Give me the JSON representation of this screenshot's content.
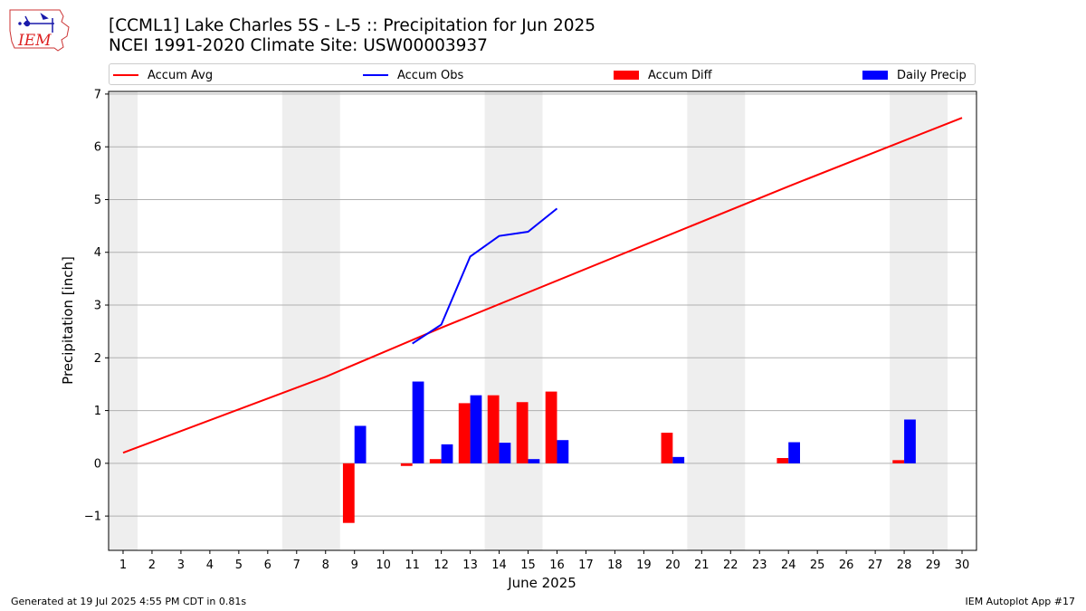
{
  "header": {
    "title_line1": "[CCML1] Lake Charles 5S - L-5 :: Precipitation for Jun 2025",
    "title_line2": "NCEI 1991-2020 Climate Site: USW00003937",
    "logo_text": "IEM"
  },
  "legend": {
    "items": [
      {
        "label": "Accum Avg",
        "kind": "line",
        "color": "#ff0000"
      },
      {
        "label": "Accum Obs",
        "kind": "line",
        "color": "#0000ff"
      },
      {
        "label": "Accum Diff",
        "kind": "bar",
        "color": "#ff0000"
      },
      {
        "label": "Daily Precip",
        "kind": "bar",
        "color": "#0000ff"
      }
    ]
  },
  "footer": {
    "left": "Generated at 19 Jul 2025 4:55 PM CDT in 0.81s",
    "right": "IEM Autoplot App #17"
  },
  "chart_data": {
    "type": "bar",
    "xlabel": "June 2025",
    "ylabel": "Precipitation [inch]",
    "xlim": [
      0.5,
      30.5
    ],
    "ylim": [
      -1.65,
      7.05
    ],
    "x_ticks": [
      1,
      2,
      3,
      4,
      5,
      6,
      7,
      8,
      9,
      10,
      11,
      12,
      13,
      14,
      15,
      16,
      17,
      18,
      19,
      20,
      21,
      22,
      23,
      24,
      25,
      26,
      27,
      28,
      29,
      30
    ],
    "y_ticks": [
      -1,
      0,
      1,
      2,
      3,
      4,
      5,
      6,
      7
    ],
    "y_tick_labels": [
      "−1",
      "0",
      "1",
      "2",
      "3",
      "4",
      "5",
      "6",
      "7"
    ],
    "grid": "horizontal",
    "weekend_shading": [
      [
        0.5,
        1.5
      ],
      [
        6.5,
        8.5
      ],
      [
        13.5,
        15.5
      ],
      [
        20.5,
        22.5
      ],
      [
        27.5,
        29.5
      ]
    ],
    "shading_color": "#eeeeee",
    "accum_avg": {
      "name": "Accum Avg",
      "color": "#ff0000",
      "x": [
        1,
        8,
        12,
        24,
        30
      ],
      "y": [
        0.2,
        1.64,
        2.57,
        5.25,
        6.55
      ]
    },
    "accum_obs": {
      "name": "Accum Obs",
      "color": "#0000ff",
      "x": [
        11,
        12,
        13,
        14,
        15,
        16
      ],
      "y": [
        2.27,
        2.63,
        3.92,
        4.31,
        4.39,
        4.83
      ]
    },
    "accum_diff": {
      "name": "Accum Diff",
      "color": "#ff0000",
      "x": [
        9,
        11,
        12,
        13,
        14,
        15,
        16,
        20,
        24,
        28
      ],
      "y": [
        -1.13,
        -0.05,
        0.08,
        1.14,
        1.29,
        1.16,
        1.36,
        0.58,
        0.1,
        0.06
      ]
    },
    "daily_precip": {
      "name": "Daily Precip",
      "color": "#0000ff",
      "x": [
        9,
        11,
        12,
        13,
        14,
        15,
        16,
        20,
        24,
        28
      ],
      "y": [
        0.71,
        1.55,
        0.36,
        1.29,
        0.39,
        0.08,
        0.44,
        0.12,
        0.4,
        0.83
      ]
    }
  }
}
